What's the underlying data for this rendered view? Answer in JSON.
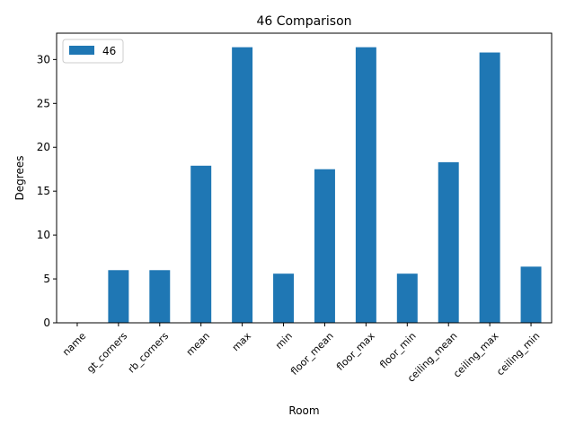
{
  "chart_data": {
    "type": "bar",
    "title": "46 Comparison",
    "xlabel": "Room",
    "ylabel": "Degrees",
    "categories": [
      "name",
      "gt_corners",
      "rb_corners",
      "mean",
      "max",
      "min",
      "floor_mean",
      "floor_max",
      "floor_min",
      "ceiling_mean",
      "ceiling_max",
      "ceiling_min"
    ],
    "series": [
      {
        "name": "46",
        "color": "#1f77b4",
        "values": [
          0,
          6,
          6,
          17.9,
          31.4,
          5.6,
          17.5,
          31.4,
          5.6,
          18.3,
          30.8,
          6.4
        ]
      }
    ],
    "ylim": [
      0,
      33
    ],
    "yticks": [
      0,
      5,
      10,
      15,
      20,
      25,
      30
    ],
    "grid": false,
    "legend_position": "top-left"
  }
}
